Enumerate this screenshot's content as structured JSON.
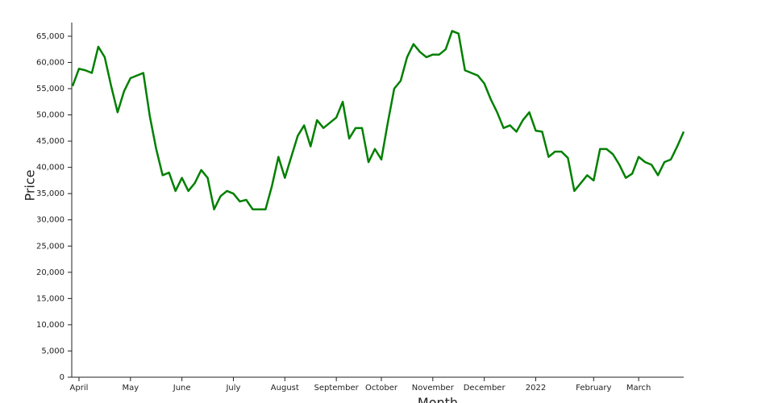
{
  "chart_data": {
    "type": "line",
    "x_label": "Month",
    "y_label": "Price",
    "categories": [
      null,
      "April",
      null,
      null,
      null,
      null,
      null,
      null,
      null,
      "May",
      null,
      null,
      null,
      null,
      null,
      null,
      null,
      "June",
      null,
      null,
      null,
      null,
      null,
      null,
      null,
      "July",
      null,
      null,
      null,
      null,
      null,
      null,
      null,
      "August",
      null,
      null,
      null,
      null,
      null,
      null,
      null,
      "September",
      null,
      null,
      null,
      null,
      null,
      null,
      "October",
      null,
      null,
      null,
      null,
      null,
      null,
      null,
      "November",
      null,
      null,
      null,
      null,
      null,
      null,
      null,
      "December",
      null,
      null,
      null,
      null,
      null,
      null,
      null,
      "2022",
      null,
      null,
      null,
      null,
      null,
      null,
      null,
      null,
      "February",
      null,
      null,
      null,
      null,
      null,
      null,
      "March",
      null,
      null,
      null,
      null,
      null,
      null,
      null
    ],
    "series": [
      {
        "name": "Price",
        "color": "#008000",
        "values": [
          55500,
          58800,
          58500,
          58000,
          63000,
          61000,
          55500,
          50500,
          54500,
          57000,
          57500,
          58000,
          49800,
          43500,
          38500,
          39000,
          35500,
          38000,
          35500,
          37000,
          39500,
          38000,
          32000,
          34500,
          35500,
          35000,
          33500,
          33800,
          32000,
          32000,
          32000,
          36500,
          42000,
          38000,
          42000,
          46000,
          48000,
          44000,
          49000,
          47500,
          48500,
          49500,
          52500,
          45500,
          47500,
          47500,
          41000,
          43500,
          41500,
          48500,
          55000,
          56500,
          61000,
          63500,
          62000,
          61000,
          61500,
          61500,
          62500,
          66000,
          65500,
          58500,
          58000,
          57500,
          56000,
          53000,
          50500,
          47500,
          48000,
          46800,
          49000,
          50500,
          47000,
          46800,
          42000,
          43000,
          43000,
          41800,
          35500,
          37000,
          38500,
          37500,
          43500,
          43500,
          42500,
          40500,
          38000,
          38800,
          42000,
          41000,
          40500,
          38500,
          41000,
          41500,
          44000,
          46800
        ]
      }
    ],
    "ylim": [
      0,
      67600
    ],
    "yticks": [
      0,
      {
        "value": 5000,
        "label": "5,000"
      },
      {
        "value": 10000,
        "label": "10,000"
      },
      {
        "value": 15000,
        "label": "15,000"
      },
      {
        "value": 20000,
        "label": "20,000"
      },
      {
        "value": 25000,
        "label": "25,000"
      },
      {
        "value": 30000,
        "label": "30,000"
      },
      {
        "value": 35000,
        "label": "35,000"
      },
      {
        "value": 40000,
        "label": "40,000"
      },
      {
        "value": 45000,
        "label": "45,000"
      },
      {
        "value": 50000,
        "label": "50,000"
      },
      {
        "value": 55000,
        "label": "55,000"
      },
      {
        "value": 60000,
        "label": "60,000"
      },
      {
        "value": 65000,
        "label": "65,000"
      }
    ],
    "grid": false
  }
}
